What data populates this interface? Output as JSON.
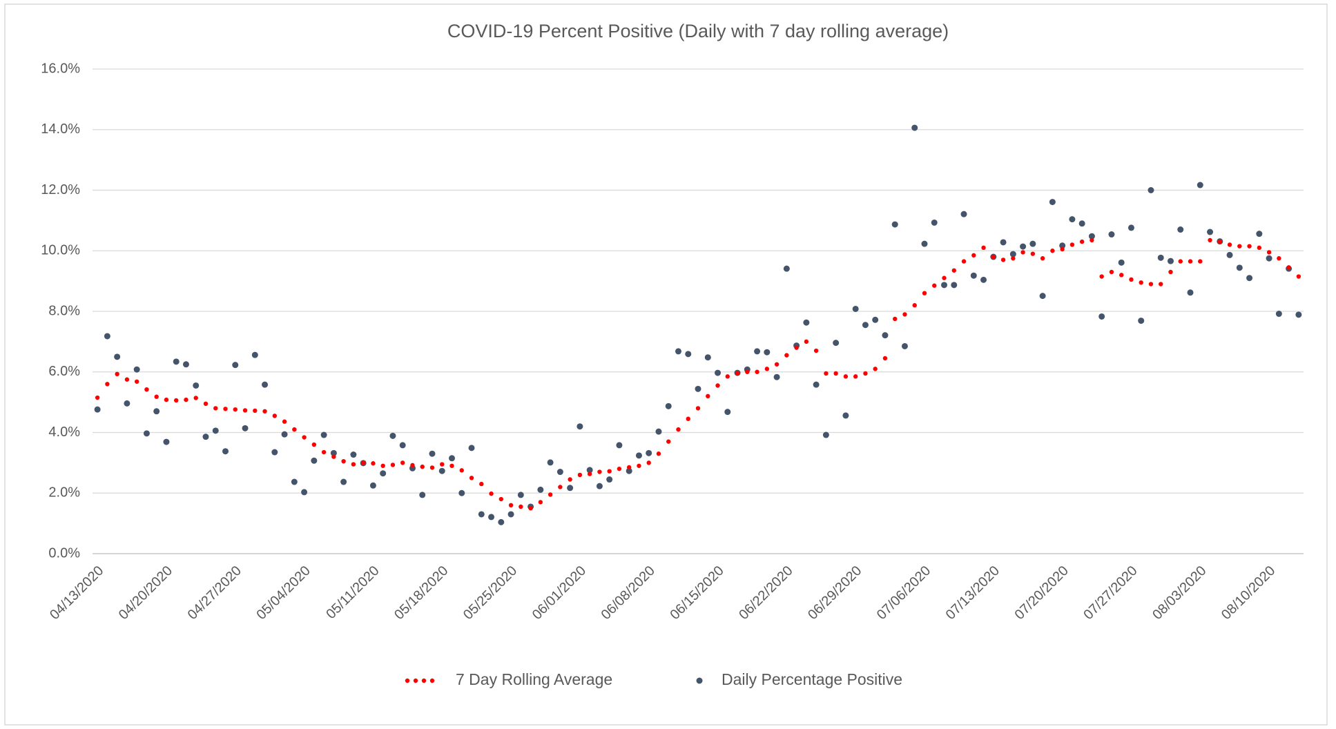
{
  "chart_data": {
    "type": "line",
    "title": "COVID-19 Percent Positive (Daily with 7 day rolling average)",
    "categories": [
      "04/13/2020",
      null,
      null,
      null,
      null,
      null,
      null,
      "04/20/2020",
      null,
      null,
      null,
      null,
      null,
      null,
      "04/27/2020",
      null,
      null,
      null,
      null,
      null,
      null,
      "05/04/2020",
      null,
      null,
      null,
      null,
      null,
      null,
      "05/11/2020",
      null,
      null,
      null,
      null,
      null,
      null,
      "05/18/2020",
      null,
      null,
      null,
      null,
      null,
      null,
      "05/25/2020",
      null,
      null,
      null,
      null,
      null,
      null,
      "06/01/2020",
      null,
      null,
      null,
      null,
      null,
      null,
      "06/08/2020",
      null,
      null,
      null,
      null,
      null,
      null,
      "06/15/2020",
      null,
      null,
      null,
      null,
      null,
      null,
      "06/22/2020",
      null,
      null,
      null,
      null,
      null,
      null,
      "06/29/2020",
      null,
      null,
      null,
      null,
      null,
      null,
      "07/06/2020",
      null,
      null,
      null,
      null,
      null,
      null,
      "07/13/2020",
      null,
      null,
      null,
      null,
      null,
      null,
      "07/20/2020",
      null,
      null,
      null,
      null,
      null,
      null,
      "07/27/2020",
      null,
      null,
      null,
      null,
      null,
      null,
      "08/03/2020",
      null,
      null,
      null,
      null,
      null,
      null,
      "08/10/2020",
      null,
      null,
      null
    ],
    "series": [
      {
        "name": "7 Day Rolling Average",
        "color": "#ff0000",
        "marker_size": "small",
        "values": [
          5.15,
          5.6,
          5.93,
          5.75,
          5.68,
          5.42,
          5.18,
          5.08,
          5.06,
          5.08,
          5.14,
          4.95,
          4.8,
          4.78,
          4.76,
          4.73,
          4.72,
          4.7,
          4.55,
          4.36,
          4.1,
          3.84,
          3.6,
          3.35,
          3.2,
          3.05,
          2.95,
          3.0,
          2.98,
          2.9,
          2.93,
          3.0,
          2.92,
          2.87,
          2.84,
          2.95,
          2.9,
          2.75,
          2.5,
          2.3,
          1.98,
          1.8,
          1.6,
          1.55,
          1.5,
          1.7,
          1.95,
          2.2,
          2.45,
          2.6,
          2.63,
          2.7,
          2.72,
          2.8,
          2.85,
          2.9,
          3.0,
          3.3,
          3.7,
          4.1,
          4.45,
          4.8,
          5.2,
          5.55,
          5.85,
          5.95,
          6.0,
          6.0,
          6.1,
          6.25,
          6.55,
          6.8,
          7.0,
          6.7,
          5.95,
          5.95,
          5.85,
          5.85,
          5.95,
          6.1,
          6.45,
          7.75,
          7.9,
          8.2,
          8.6,
          8.85,
          9.1,
          9.35,
          9.65,
          9.85,
          10.1,
          9.8,
          9.7,
          9.75,
          9.95,
          9.9,
          9.75,
          10.0,
          10.05,
          10.2,
          10.3,
          10.35,
          9.15,
          9.3,
          9.2,
          9.05,
          8.95,
          8.9,
          8.9,
          9.3,
          9.65,
          9.65,
          9.65,
          10.35,
          10.3,
          10.2,
          10.15,
          10.15,
          10.1,
          9.95,
          9.75,
          9.45,
          9.15
        ]
      },
      {
        "name": "Daily Percentage Positive",
        "color": "#44546a",
        "marker_size": "large",
        "values": [
          4.76,
          7.18,
          6.5,
          4.96,
          6.08,
          3.97,
          4.7,
          3.69,
          6.34,
          6.25,
          5.55,
          3.86,
          4.06,
          3.38,
          6.23,
          4.14,
          6.56,
          5.58,
          3.35,
          3.94,
          2.37,
          2.03,
          3.07,
          3.92,
          3.32,
          2.37,
          3.27,
          2.99,
          2.25,
          2.65,
          3.89,
          3.58,
          2.82,
          1.94,
          3.3,
          2.73,
          3.15,
          2.0,
          3.49,
          1.3,
          1.21,
          1.04,
          1.3,
          1.94,
          1.55,
          2.11,
          3.01,
          2.7,
          2.17,
          4.2,
          2.76,
          2.23,
          2.45,
          3.58,
          2.73,
          3.24,
          3.32,
          4.03,
          4.87,
          6.68,
          6.59,
          5.44,
          6.48,
          5.97,
          4.68,
          5.97,
          6.08,
          6.68,
          6.65,
          5.83,
          9.41,
          6.87,
          7.63,
          5.58,
          3.92,
          6.96,
          4.56,
          8.08,
          7.55,
          7.72,
          7.21,
          10.87,
          6.85,
          14.06,
          10.23,
          10.93,
          8.87,
          8.87,
          11.21,
          9.18,
          9.04,
          9.8,
          10.28,
          9.89,
          10.14,
          10.23,
          8.51,
          11.61,
          10.17,
          11.04,
          10.9,
          10.48,
          7.83,
          10.54,
          9.61,
          10.76,
          7.69,
          12.0,
          9.77,
          9.66,
          10.7,
          8.62,
          12.17,
          10.62,
          10.31,
          9.86,
          9.44,
          9.1,
          10.56,
          9.75,
          7.92,
          9.41,
          7.89
        ]
      }
    ],
    "ylim": [
      0,
      16
    ],
    "yticks": [
      {
        "value": 0,
        "label": "0.0%"
      },
      {
        "value": 2,
        "label": "2.0%"
      },
      {
        "value": 4,
        "label": "4.0%"
      },
      {
        "value": 6,
        "label": "6.0%"
      },
      {
        "value": 8,
        "label": "8.0%"
      },
      {
        "value": 10,
        "label": "10.0%"
      },
      {
        "value": 12,
        "label": "12.0%"
      },
      {
        "value": 14,
        "label": "14.0%"
      },
      {
        "value": 16,
        "label": "16.0%"
      }
    ],
    "grid": true,
    "legend": "bottom"
  }
}
